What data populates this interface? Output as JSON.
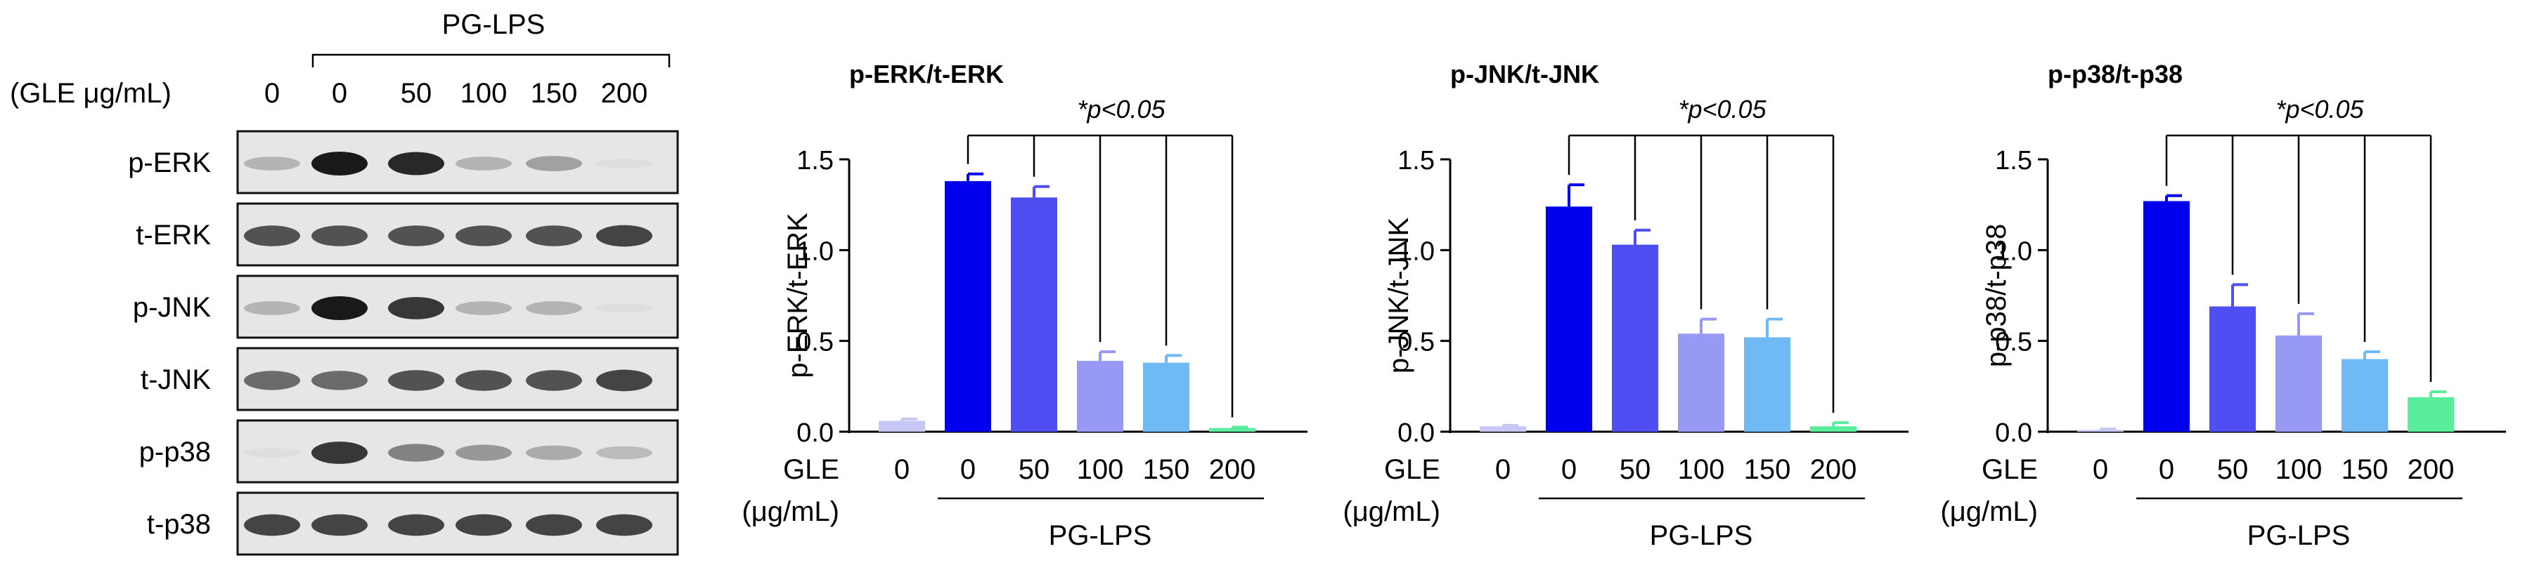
{
  "blot": {
    "header_group": "PG-LPS",
    "header_label": "(GLE μg/mL)",
    "lanes": [
      "0",
      "0",
      "50",
      "100",
      "150",
      "200"
    ],
    "rows": [
      {
        "label": "p-ERK",
        "intensity": [
          0.35,
          1.0,
          0.95,
          0.35,
          0.45,
          0.05
        ]
      },
      {
        "label": "t-ERK",
        "intensity": [
          0.8,
          0.8,
          0.8,
          0.8,
          0.8,
          0.85
        ]
      },
      {
        "label": "p-JNK",
        "intensity": [
          0.35,
          1.0,
          0.9,
          0.35,
          0.35,
          0.05
        ]
      },
      {
        "label": "t-JNK",
        "intensity": [
          0.7,
          0.7,
          0.8,
          0.8,
          0.8,
          0.85
        ]
      },
      {
        "label": "p-p38",
        "intensity": [
          0.05,
          0.9,
          0.6,
          0.5,
          0.4,
          0.3
        ]
      },
      {
        "label": "t-p38",
        "intensity": [
          0.85,
          0.85,
          0.85,
          0.85,
          0.85,
          0.85
        ]
      }
    ]
  },
  "colors": [
    "#c7c7f5",
    "#0000ee",
    "#4e4ef2",
    "#9898f5",
    "#6fb9f5",
    "#58ee9c"
  ],
  "chart_data": [
    {
      "type": "bar",
      "title": "p-ERK/t-ERK",
      "ylabel": "p-ERK/t-ERK",
      "xlabel_top": "GLE",
      "xlabel_unit": "(μg/mL)",
      "group_label": "PG-LPS",
      "categories": [
        "0",
        "0",
        "50",
        "100",
        "150",
        "200"
      ],
      "values": [
        0.06,
        1.38,
        1.29,
        0.39,
        0.38,
        0.02
      ],
      "errors": [
        0.01,
        0.04,
        0.06,
        0.05,
        0.04,
        0.005
      ],
      "ylim": [
        0,
        1.5
      ],
      "yticks": [
        "0.0",
        "0.5",
        "1.0",
        "1.5"
      ],
      "annotation": "*p<0.05"
    },
    {
      "type": "bar",
      "title": "p-JNK/t-JNK",
      "ylabel": "p-JNK/t-JNK",
      "xlabel_top": "GLE",
      "xlabel_unit": "(μg/mL)",
      "group_label": "PG-LPS",
      "categories": [
        "0",
        "0",
        "50",
        "100",
        "150",
        "200"
      ],
      "values": [
        0.03,
        1.24,
        1.03,
        0.54,
        0.52,
        0.03
      ],
      "errors": [
        0.005,
        0.12,
        0.08,
        0.08,
        0.1,
        0.02
      ],
      "ylim": [
        0,
        1.5
      ],
      "yticks": [
        "0.0",
        "0.5",
        "1.0",
        "1.5"
      ],
      "annotation": "*p<0.05"
    },
    {
      "type": "bar",
      "title": "p-p38/t-p38",
      "ylabel": "p-p38/t-p38",
      "xlabel_top": "GLE",
      "xlabel_unit": "(μg/mL)",
      "group_label": "PG-LPS",
      "categories": [
        "0",
        "0",
        "50",
        "100",
        "150",
        "200"
      ],
      "values": [
        0.01,
        1.27,
        0.69,
        0.53,
        0.4,
        0.19
      ],
      "errors": [
        0.005,
        0.03,
        0.12,
        0.12,
        0.04,
        0.03
      ],
      "ylim": [
        0,
        1.5
      ],
      "yticks": [
        "0.0",
        "0.5",
        "1.0",
        "1.5"
      ],
      "annotation": "*p<0.05"
    }
  ]
}
